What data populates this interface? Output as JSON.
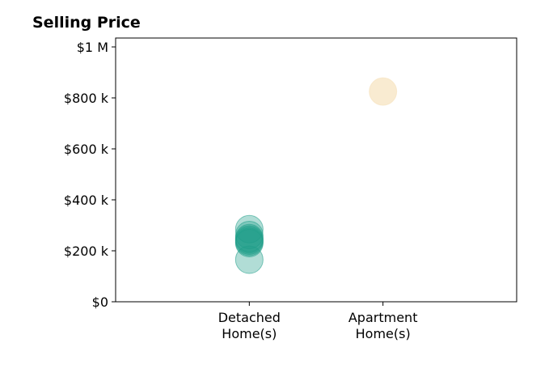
{
  "chart_data": {
    "type": "scatter",
    "title": "Selling Price",
    "xlabel": "",
    "ylabel": "",
    "categories": [
      "Detached\nHome(s)",
      "Apartment\nHome(s)"
    ],
    "xlim": [
      -1,
      2
    ],
    "ylim": [
      0,
      1000000
    ],
    "yticks": [
      0,
      200000,
      400000,
      600000,
      800000,
      1000000
    ],
    "ytick_labels": [
      "$0",
      "$200 k",
      "$400 k",
      "$600 k",
      "$800 k",
      "$1 M"
    ],
    "grid": false,
    "series": [
      {
        "color": "#1f9e89",
        "category_index": 0,
        "values": [
          285000,
          262000,
          250000,
          245000,
          240000,
          235000,
          230000,
          165000
        ]
      },
      {
        "color": "#f5deb3",
        "category_index": 1,
        "values": [
          825000
        ]
      }
    ]
  }
}
